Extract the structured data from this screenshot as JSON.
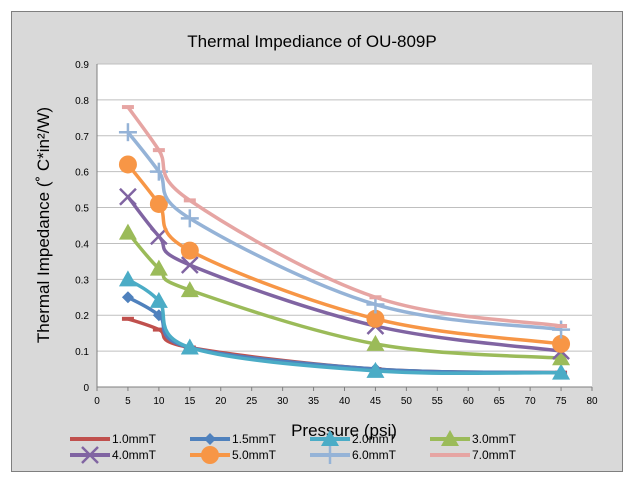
{
  "chart_data": {
    "type": "line",
    "title": "Thermal Impediance of OU-809P",
    "xlabel": "Pressure (psi)",
    "ylabel": "Thermal Impedance (˚ C*in²/W)",
    "xlim": [
      0,
      80
    ],
    "ylim": [
      0,
      0.9
    ],
    "xticks": [
      0,
      5,
      10,
      15,
      20,
      25,
      30,
      35,
      40,
      45,
      50,
      55,
      60,
      65,
      70,
      75,
      80
    ],
    "yticks": [
      0,
      0.1,
      0.2,
      0.3,
      0.4,
      0.5,
      0.6,
      0.7,
      0.8,
      0.9
    ],
    "grid": "horizontal",
    "legend_position": "bottom",
    "x": [
      5,
      10,
      15,
      45,
      75
    ],
    "series": [
      {
        "name": "1.0mmT",
        "color": "#c0504d",
        "marker": "dash",
        "values": [
          0.19,
          0.16,
          0.11,
          0.05,
          0.04
        ]
      },
      {
        "name": "1.5mmT",
        "color": "#4f81bd",
        "marker": "diamond",
        "values": [
          0.25,
          0.2,
          0.11,
          0.05,
          0.04
        ]
      },
      {
        "name": "2.0mmT",
        "color": "#4bacc6",
        "marker": "triangle",
        "values": [
          0.3,
          0.24,
          0.11,
          0.045,
          0.04
        ]
      },
      {
        "name": "3.0mmT",
        "color": "#9bbb59",
        "marker": "triangle",
        "values": [
          0.43,
          0.33,
          0.27,
          0.12,
          0.08
        ]
      },
      {
        "name": "4.0mmT",
        "color": "#8064a2",
        "marker": "x",
        "values": [
          0.53,
          0.42,
          0.34,
          0.17,
          0.1
        ]
      },
      {
        "name": "5.0mmT",
        "color": "#f79646",
        "marker": "circle",
        "values": [
          0.62,
          0.51,
          0.38,
          0.19,
          0.12
        ]
      },
      {
        "name": "6.0mmT",
        "color": "#95b3d7",
        "marker": "plus",
        "values": [
          0.71,
          0.6,
          0.47,
          0.23,
          0.16
        ]
      },
      {
        "name": "7.0mmT",
        "color": "#e6a5a3",
        "marker": "dash",
        "values": [
          0.78,
          0.66,
          0.52,
          0.25,
          0.17
        ]
      }
    ]
  }
}
